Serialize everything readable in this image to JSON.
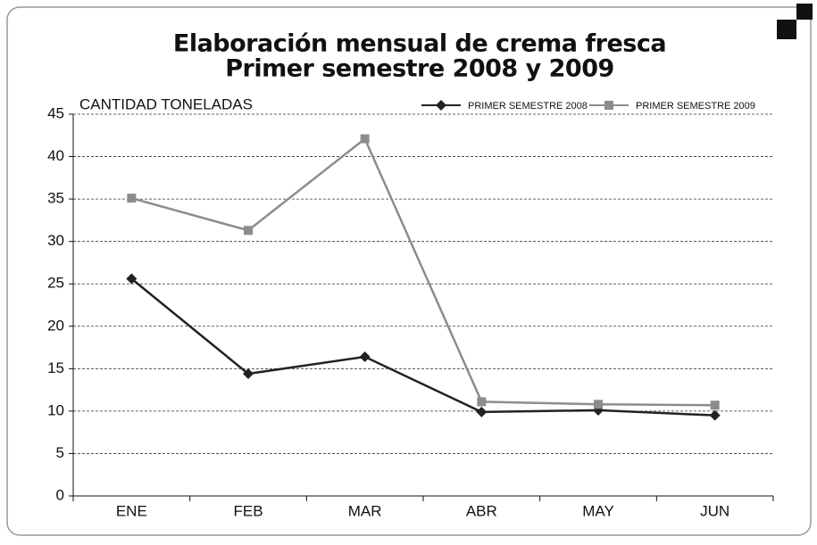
{
  "chart_data": {
    "type": "line",
    "title": "Elaboración mensual de crema fresca",
    "subtitle": "Primer semestre 2008 y 2009",
    "y_label": "CANTIDAD TONELADAS",
    "categories": [
      "ENE",
      "FEB",
      "MAR",
      "ABR",
      "MAY",
      "JUN"
    ],
    "series": [
      {
        "name": "PRIMER SEMESTRE 2008",
        "color": "#222222",
        "marker": "diamond",
        "values": [
          25.6,
          14.4,
          16.4,
          9.9,
          10.1,
          9.5
        ]
      },
      {
        "name": "PRIMER SEMESTRE 2009",
        "color": "#8c8c8c",
        "marker": "square",
        "values": [
          35.1,
          31.3,
          42.1,
          11.1,
          10.8,
          10.7
        ]
      }
    ],
    "ylim": [
      0,
      45
    ],
    "yticks": [
      0,
      5,
      10,
      15,
      20,
      25,
      30,
      35,
      40,
      45
    ],
    "grid": true
  }
}
